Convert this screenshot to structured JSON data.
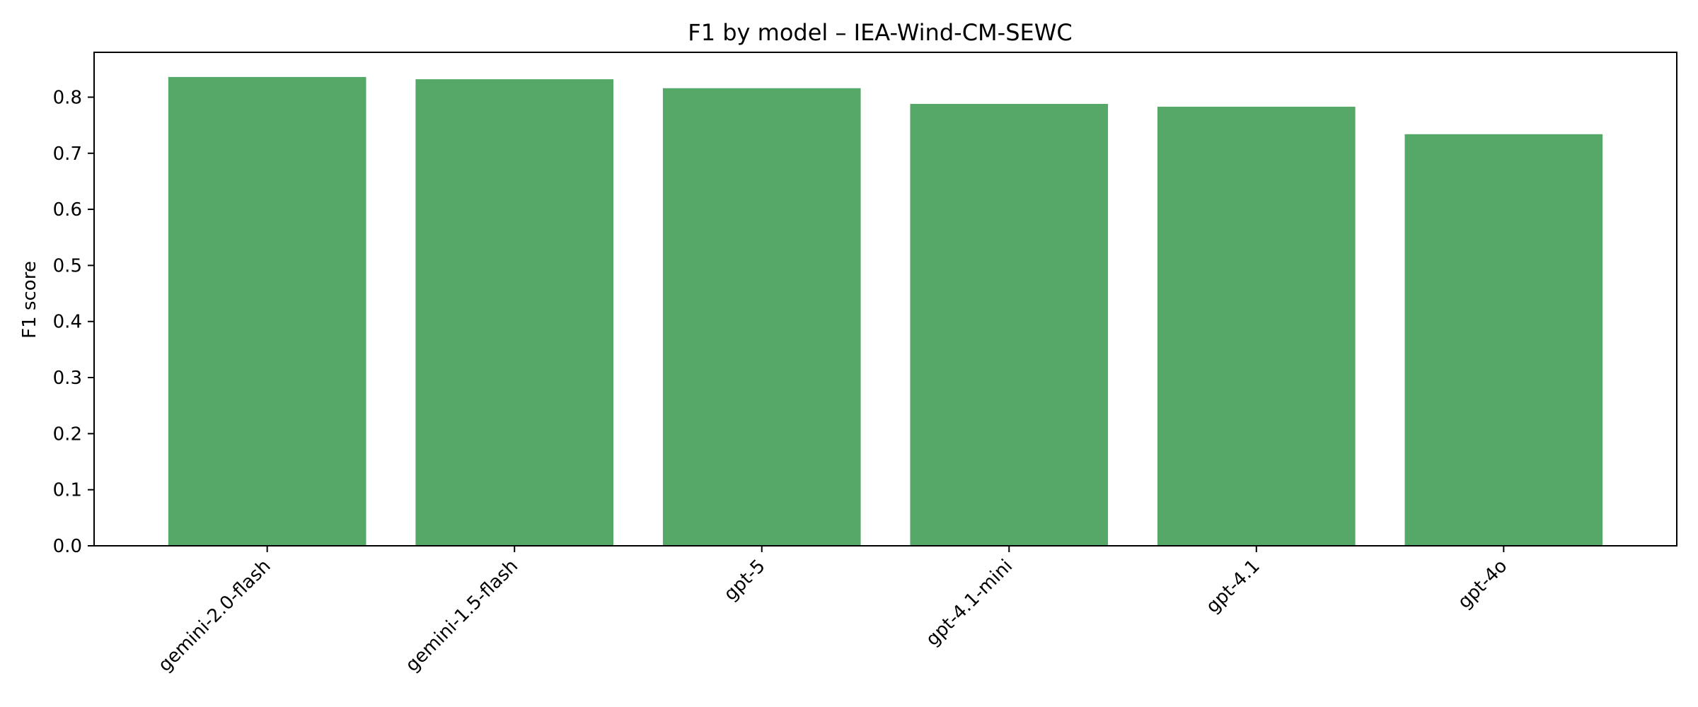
{
  "chart_data": {
    "type": "bar",
    "title": "F1 by model – IEA-Wind-CM-SEWC",
    "xlabel": "",
    "ylabel": "F1 score",
    "categories": [
      "gemini-2.0-flash",
      "gemini-1.5-flash",
      "gpt-5",
      "gpt-4.1-mini",
      "gpt-4.1",
      "gpt-4o"
    ],
    "values": [
      0.836,
      0.832,
      0.816,
      0.788,
      0.783,
      0.734
    ],
    "ylim": [
      0,
      0.88
    ],
    "yticks": [
      0.0,
      0.1,
      0.2,
      0.3,
      0.4,
      0.5,
      0.6,
      0.7,
      0.8
    ],
    "ytick_labels": [
      "0.0",
      "0.1",
      "0.2",
      "0.3",
      "0.4",
      "0.5",
      "0.6",
      "0.7",
      "0.8"
    ],
    "bar_color": "#55a868",
    "grid": false,
    "legend": "none"
  }
}
